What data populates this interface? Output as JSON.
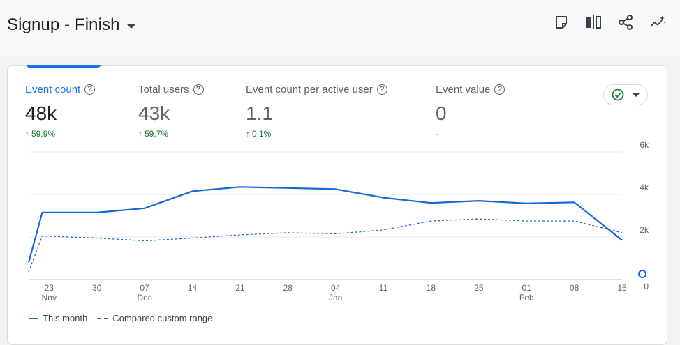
{
  "header": {
    "title": "Signup - Finish"
  },
  "toolbar": {
    "icons": [
      "note-icon",
      "compare-columns-icon",
      "share-icon",
      "insights-icon"
    ]
  },
  "metrics": [
    {
      "label": "Event count",
      "value": "48k",
      "change": "59.9%",
      "active": true
    },
    {
      "label": "Total users",
      "value": "43k",
      "change": "59.7%",
      "active": false
    },
    {
      "label": "Event count per active user",
      "value": "1.1",
      "change": "0.1%",
      "active": false
    },
    {
      "label": "Event value",
      "value": "0",
      "change": "-",
      "active": false
    }
  ],
  "legend": {
    "this_month": "This month",
    "compared": "Compared custom range"
  },
  "colors": {
    "accent": "#1a73e8",
    "series": "#1967d2",
    "positive": "#137333",
    "check": "#188038"
  },
  "chart_data": {
    "type": "line",
    "x": [
      "2023-11-20",
      "2023-11-22",
      "2023-11-30",
      "2023-12-07",
      "2023-12-14",
      "2023-12-21",
      "2023-12-28",
      "2024-01-04",
      "2024-01-11",
      "2024-01-18",
      "2024-01-25",
      "2024-02-01",
      "2024-02-08",
      "2024-02-15"
    ],
    "series": [
      {
        "name": "This month",
        "style": "solid",
        "values": [
          800,
          3150,
          3150,
          3350,
          4150,
          4350,
          4300,
          4250,
          3850,
          3600,
          3700,
          3580,
          3630,
          1850
        ]
      },
      {
        "name": "Compared custom range",
        "style": "dashed",
        "values": [
          350,
          2050,
          1950,
          1820,
          1950,
          2100,
          2200,
          2150,
          2330,
          2750,
          2850,
          2750,
          2750,
          2200
        ]
      }
    ],
    "tick_labels": [
      {
        "x": "2023-11-23",
        "day": "23",
        "month": "Nov"
      },
      {
        "x": "2023-11-30",
        "day": "30",
        "month": ""
      },
      {
        "x": "2023-12-07",
        "day": "07",
        "month": "Dec"
      },
      {
        "x": "2023-12-14",
        "day": "14",
        "month": ""
      },
      {
        "x": "2023-12-21",
        "day": "21",
        "month": ""
      },
      {
        "x": "2023-12-28",
        "day": "28",
        "month": ""
      },
      {
        "x": "2024-01-04",
        "day": "04",
        "month": "Jan"
      },
      {
        "x": "2024-01-11",
        "day": "11",
        "month": ""
      },
      {
        "x": "2024-01-18",
        "day": "18",
        "month": ""
      },
      {
        "x": "2024-01-25",
        "day": "25",
        "month": ""
      },
      {
        "x": "2024-02-01",
        "day": "01",
        "month": "Feb"
      },
      {
        "x": "2024-02-08",
        "day": "08",
        "month": ""
      },
      {
        "x": "2024-02-15",
        "day": "15",
        "month": ""
      }
    ],
    "y_ticks": [
      {
        "v": 0,
        "label": "0"
      },
      {
        "v": 2000,
        "label": "2k"
      },
      {
        "v": 4000,
        "label": "4k"
      },
      {
        "v": 6000,
        "label": "6k"
      }
    ],
    "ylim": [
      0,
      6000
    ],
    "xlim": [
      "2023-11-20",
      "2024-02-15"
    ],
    "grid": true,
    "y_axis_side": "right",
    "legend_position": "bottom-left"
  }
}
